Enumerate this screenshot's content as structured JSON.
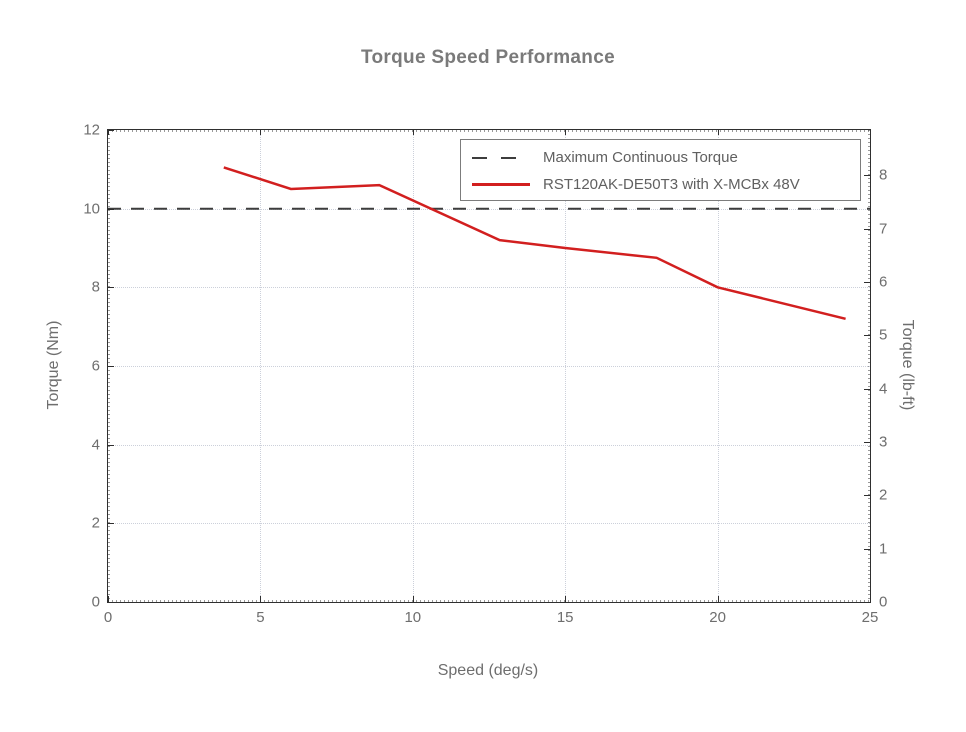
{
  "title": "Torque Speed Performance",
  "chart_data": {
    "type": "line",
    "title": "Torque Speed Performance",
    "xlabel": "Speed (deg/s)",
    "ylabel_left": "Torque (Nm)",
    "ylabel_right": "Torque (lb-ft)",
    "xlim": [
      0,
      25
    ],
    "ylim_left": [
      0,
      12
    ],
    "ylim_right": [
      0,
      8.851
    ],
    "x_ticks": [
      0,
      5,
      10,
      15,
      20,
      25
    ],
    "y_ticks_left": [
      0,
      2,
      4,
      6,
      8,
      10,
      12
    ],
    "y_ticks_right": [
      0,
      1,
      2,
      3,
      4,
      5,
      6,
      7,
      8
    ],
    "grid": true,
    "legend_position": "top-right-inside",
    "colors": {
      "max_torque_line": "#3d3d3d",
      "series_line": "#d21f1f",
      "grid": "#ccd0da",
      "text": "#6e6e6e"
    },
    "series": [
      {
        "name": "Maximum Continuous Torque",
        "style": "dashed",
        "color": "#3d3d3d",
        "points": [
          [
            0,
            10
          ],
          [
            25,
            10
          ]
        ]
      },
      {
        "name": "RST120AK-DE50T3 with X-MCBx 48V",
        "style": "solid",
        "color": "#d21f1f",
        "points": [
          [
            3.8,
            11.05
          ],
          [
            6.0,
            10.5
          ],
          [
            8.9,
            10.6
          ],
          [
            12.85,
            9.2
          ],
          [
            15.0,
            9.0
          ],
          [
            18.0,
            8.75
          ],
          [
            20.0,
            8.0
          ],
          [
            24.2,
            7.2
          ]
        ]
      }
    ]
  }
}
